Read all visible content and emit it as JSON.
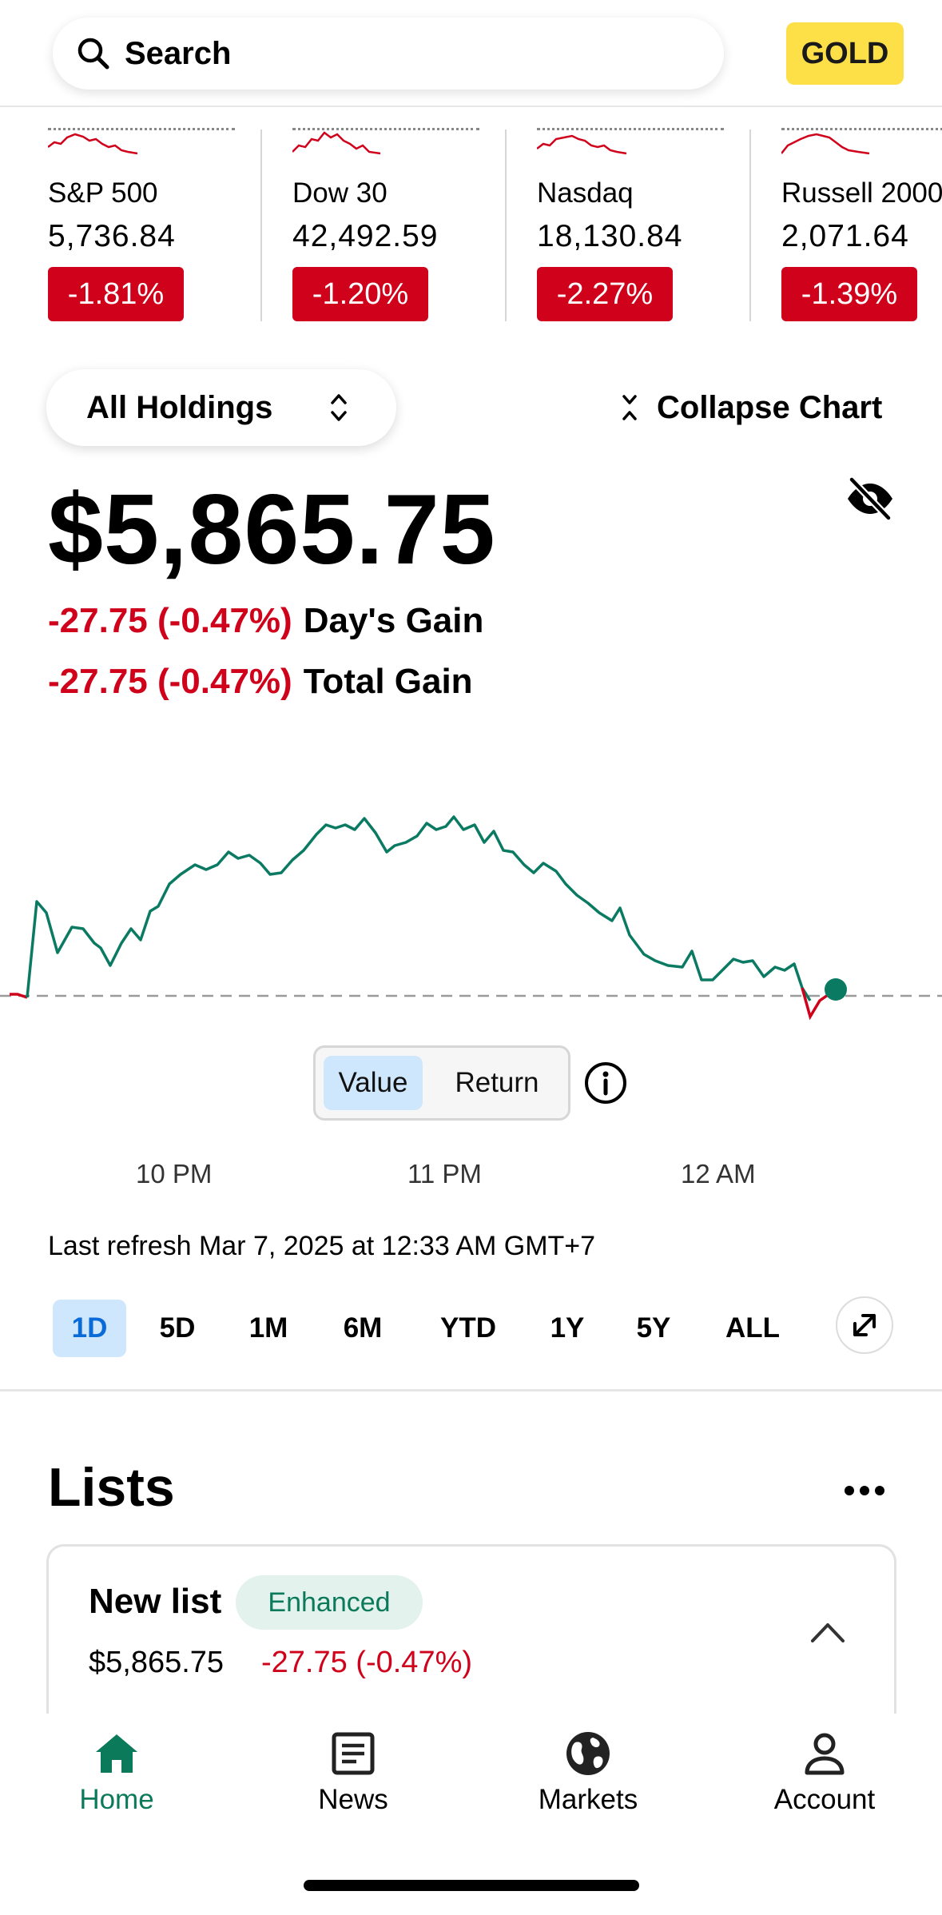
{
  "header": {
    "search_label": "Search",
    "gold_label": "GOLD"
  },
  "tickers": [
    {
      "name": "S&P 500",
      "price": "5,736.84",
      "change": "-1.81%"
    },
    {
      "name": "Dow 30",
      "price": "42,492.59",
      "change": "-1.20%"
    },
    {
      "name": "Nasdaq",
      "price": "18,130.84",
      "change": "-2.27%"
    },
    {
      "name": "Russell 2000",
      "price": "2,071.64",
      "change": "-1.39%"
    }
  ],
  "portfolio": {
    "holdings_label": "All Holdings",
    "collapse_label": "Collapse Chart",
    "value": "$5,865.75",
    "days_gain_value": "-27.75 (-0.47%)",
    "days_gain_label": "Day's Gain",
    "total_gain_value": "-27.75 (-0.47%)",
    "total_gain_label": "Total Gain"
  },
  "chart_toggle": {
    "value_label": "Value",
    "return_label": "Return"
  },
  "time_axis": [
    "10 PM",
    "11 PM",
    "12 AM"
  ],
  "refresh_text": "Last refresh Mar 7, 2025 at 12:33 AM GMT+7",
  "ranges": [
    "1D",
    "5D",
    "1M",
    "6M",
    "YTD",
    "1Y",
    "5Y",
    "ALL"
  ],
  "selected_range": "1D",
  "lists": {
    "title": "Lists",
    "card": {
      "name": "New list",
      "badge": "Enhanced",
      "value": "$5,865.75",
      "change": "-27.75 (-0.47%)"
    }
  },
  "nav": [
    {
      "label": "Home",
      "icon": "home-icon"
    },
    {
      "label": "News",
      "icon": "news-icon"
    },
    {
      "label": "Markets",
      "icon": "globe-icon"
    },
    {
      "label": "Account",
      "icon": "person-icon"
    }
  ],
  "colors": {
    "negative": "#d0021b",
    "chart_line": "#0b7a63",
    "accent_green": "#0b7a5a",
    "selected_blue": "#cfe7fd",
    "gold_badge": "#fde047"
  }
}
